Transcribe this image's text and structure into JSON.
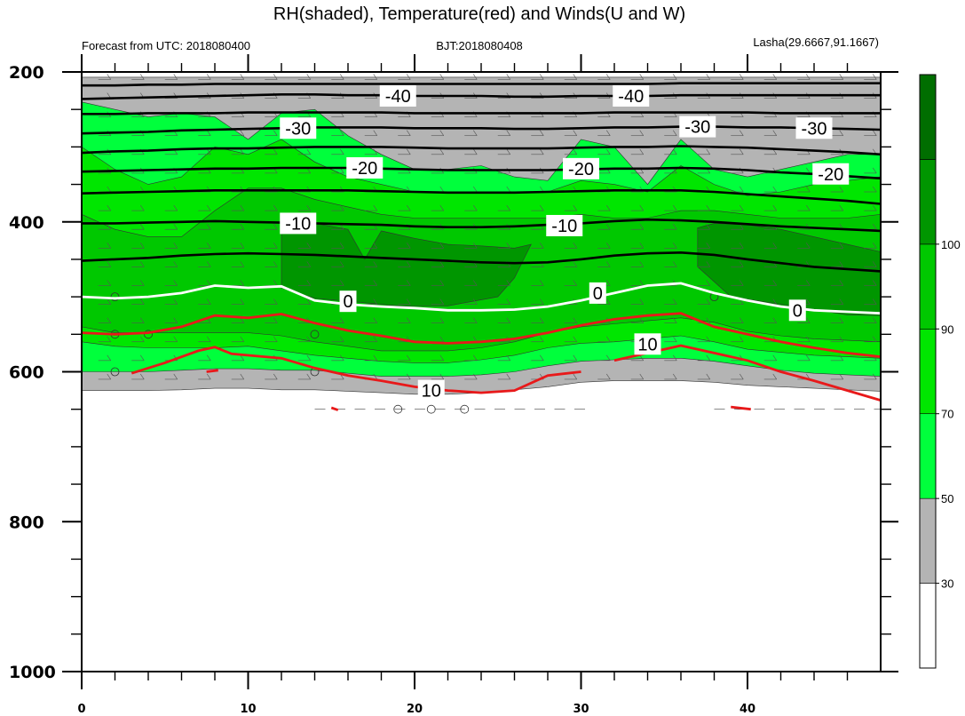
{
  "title": "RH(shaded), Temperature(red) and Winds(U and W)",
  "forecast_label": "Forecast from UTC: 2018080400",
  "bjt_label": "BJT:2018080408",
  "location_label": "Lasha(29.6667,91.1667)",
  "chart_data": {
    "type": "heatmap",
    "title": "RH(shaded), Temperature(red) and Winds(U and W)",
    "x_ticks": [
      "0",
      "10",
      "20",
      "30",
      "40"
    ],
    "y_ticks": [
      "200",
      "400",
      "600",
      "800",
      "1000"
    ],
    "xlim": [
      0,
      48
    ],
    "ylim": [
      1000,
      200
    ],
    "grid": false,
    "x": [
      0,
      2,
      4,
      6,
      8,
      10,
      12,
      14,
      16,
      18,
      20,
      22,
      24,
      26,
      28,
      30,
      32,
      34,
      36,
      38,
      40,
      42,
      44,
      46,
      48
    ],
    "colorbar": {
      "ticks": [
        "30",
        "50",
        "70",
        "90",
        "100"
      ],
      "colors": [
        "#ffffff",
        "#b4b4b4",
        "#00ff3c",
        "#00e600",
        "#00c800",
        "#009600",
        "#006e00"
      ]
    },
    "rh_bands": [
      {
        "color": "#b4b4b4",
        "top": [
          207,
          207,
          207,
          207,
          207,
          207,
          207,
          207,
          207,
          207,
          207,
          207,
          207,
          207,
          207,
          207,
          207,
          207,
          207,
          207,
          207,
          207,
          207,
          207,
          207
        ],
        "bottom": [
          625,
          625,
          625,
          624,
          622,
          622,
          624,
          624,
          626,
          628,
          630,
          630,
          628,
          624,
          620,
          614,
          612,
          612,
          612,
          614,
          618,
          620,
          622,
          624,
          626
        ]
      },
      {
        "color": "#00ff3c",
        "top": [
          240,
          250,
          260,
          255,
          260,
          290,
          255,
          250,
          285,
          310,
          330,
          330,
          325,
          340,
          345,
          290,
          300,
          350,
          290,
          330,
          340,
          330,
          320,
          310,
          310
        ],
        "bottom": [
          600,
          600,
          600,
          598,
          596,
          596,
          598,
          598,
          602,
          606,
          606,
          606,
          604,
          600,
          592,
          586,
          584,
          582,
          582,
          586,
          592,
          598,
          602,
          604,
          606
        ]
      },
      {
        "color": "#00e600",
        "top": [
          300,
          330,
          350,
          340,
          300,
          310,
          290,
          320,
          340,
          350,
          360,
          360,
          360,
          360,
          360,
          345,
          350,
          360,
          325,
          350,
          365,
          360,
          350,
          345,
          340
        ],
        "bottom": [
          560,
          566,
          568,
          568,
          568,
          566,
          572,
          578,
          582,
          586,
          588,
          588,
          584,
          578,
          568,
          562,
          560,
          556,
          552,
          560,
          570,
          574,
          578,
          580,
          582
        ]
      },
      {
        "color": "#00c800",
        "top": [
          390,
          410,
          420,
          420,
          385,
          355,
          355,
          370,
          380,
          390,
          395,
          395,
          395,
          395,
          395,
          390,
          395,
          395,
          385,
          385,
          390,
          395,
          395,
          395,
          390
        ],
        "bottom": [
          540,
          548,
          548,
          548,
          548,
          548,
          552,
          560,
          566,
          572,
          572,
          572,
          568,
          560,
          548,
          540,
          536,
          532,
          528,
          534,
          546,
          552,
          556,
          558,
          560
        ]
      },
      {
        "color": "#009600",
        "top": null,
        "bottom": null
      }
    ],
    "dark_green_regions": [
      [
        [
          12,
          408
        ],
        [
          14,
          402
        ],
        [
          16,
          410
        ],
        [
          17,
          450
        ],
        [
          18,
          412
        ],
        [
          20,
          422
        ],
        [
          22,
          430
        ],
        [
          24,
          432
        ],
        [
          26,
          435
        ],
        [
          27,
          430
        ],
        [
          26,
          475
        ],
        [
          25,
          500
        ],
        [
          22,
          512
        ],
        [
          19,
          512
        ],
        [
          16,
          506
        ],
        [
          14,
          502
        ],
        [
          12,
          488
        ]
      ],
      [
        [
          37,
          408
        ],
        [
          38,
          402
        ],
        [
          40,
          404
        ],
        [
          42,
          410
        ],
        [
          44,
          420
        ],
        [
          46,
          430
        ],
        [
          48,
          440
        ],
        [
          48,
          525
        ],
        [
          46,
          524
        ],
        [
          42,
          510
        ],
        [
          39,
          500
        ],
        [
          37,
          460
        ]
      ]
    ],
    "temperature_black_lines": [
      {
        "label": "-40",
        "values": [
          218,
          218,
          217,
          217,
          216,
          216,
          216,
          216,
          216,
          216,
          216,
          216,
          216,
          216,
          216,
          216,
          216,
          216,
          215,
          215,
          215,
          215,
          215,
          215,
          215
        ]
      },
      {
        "label": "-40",
        "values": [
          236,
          235,
          234,
          233,
          232,
          231,
          230,
          230,
          231,
          231,
          232,
          232,
          232,
          233,
          233,
          232,
          232,
          232,
          231,
          231,
          231,
          231,
          231,
          231,
          231
        ]
      },
      {
        "label": "-30",
        "values": [
          256,
          256,
          255,
          255,
          255,
          254,
          254,
          254,
          254,
          254,
          255,
          255,
          255,
          255,
          255,
          255,
          254,
          254,
          254,
          254,
          254,
          255,
          255,
          255,
          255
        ]
      },
      {
        "label": "-30",
        "values": [
          282,
          281,
          280,
          278,
          277,
          276,
          275,
          274,
          274,
          274,
          275,
          275,
          275,
          276,
          276,
          275,
          274,
          274,
          273,
          273,
          274,
          274,
          275,
          276,
          277
        ]
      },
      {
        "label": "-30",
        "values": [
          308,
          306,
          305,
          303,
          302,
          302,
          301,
          300,
          300,
          300,
          301,
          302,
          302,
          302,
          302,
          301,
          300,
          300,
          299,
          300,
          301,
          303,
          305,
          307,
          310
        ]
      },
      {
        "label": "-20",
        "values": [
          333,
          332,
          331,
          330,
          329,
          329,
          328,
          328,
          328,
          329,
          330,
          331,
          331,
          331,
          331,
          330,
          329,
          329,
          328,
          329,
          331,
          334,
          336,
          339,
          342
        ]
      },
      {
        "label": "-20",
        "values": [
          362,
          361,
          360,
          359,
          358,
          358,
          358,
          358,
          358,
          359,
          360,
          361,
          361,
          361,
          360,
          359,
          358,
          358,
          358,
          360,
          363,
          366,
          369,
          372,
          376
        ]
      },
      {
        "label": "-10",
        "values": [
          402,
          402,
          401,
          400,
          399,
          400,
          401,
          402,
          403,
          404,
          406,
          407,
          407,
          406,
          404,
          402,
          399,
          397,
          398,
          400,
          403,
          406,
          408,
          410,
          412
        ]
      },
      {
        "label": "-10",
        "values": [
          452,
          450,
          448,
          445,
          443,
          442,
          443,
          444,
          446,
          448,
          450,
          452,
          454,
          455,
          454,
          450,
          445,
          442,
          441,
          444,
          450,
          455,
          460,
          463,
          466
        ]
      }
    ],
    "temperature_zero_line": {
      "label": "0",
      "values": [
        500,
        502,
        500,
        495,
        485,
        488,
        486,
        505,
        510,
        513,
        515,
        518,
        518,
        517,
        513,
        505,
        495,
        485,
        482,
        495,
        505,
        513,
        518,
        520,
        522
      ]
    },
    "temperature_red_lines": [
      {
        "label": "10",
        "values": [
          548,
          550,
          548,
          540,
          525,
          528,
          523,
          535,
          545,
          552,
          560,
          562,
          560,
          556,
          548,
          538,
          530,
          525,
          522,
          540,
          550,
          560,
          568,
          575,
          580
        ]
      },
      {
        "label": "10",
        "x": [
          3,
          5,
          7,
          8,
          9,
          11,
          12,
          14,
          16,
          18,
          20,
          22,
          24,
          26,
          28,
          30
        ],
        "values": [
          602,
          588,
          572,
          567,
          576,
          580,
          582,
          595,
          605,
          612,
          620,
          625,
          628,
          625,
          605,
          600
        ]
      },
      {
        "label": "10",
        "x": [
          32,
          34,
          36,
          38,
          40,
          42,
          44,
          46,
          48
        ],
        "values": [
          585,
          575,
          565,
          575,
          585,
          600,
          612,
          625,
          638
        ]
      }
    ],
    "contour_labels": [
      {
        "text": "-40",
        "x": 19,
        "y": 232
      },
      {
        "text": "-40",
        "x": 33,
        "y": 232
      },
      {
        "text": "-30",
        "x": 13,
        "y": 275
      },
      {
        "text": "-30",
        "x": 37,
        "y": 273
      },
      {
        "text": "-30",
        "x": 44,
        "y": 275
      },
      {
        "text": "-20",
        "x": 17,
        "y": 328
      },
      {
        "text": "-20",
        "x": 30,
        "y": 329
      },
      {
        "text": "-20",
        "x": 45,
        "y": 336
      },
      {
        "text": "-10",
        "x": 13,
        "y": 402
      },
      {
        "text": "-10",
        "x": 29,
        "y": 405
      },
      {
        "text": "0",
        "x": 16,
        "y": 506
      },
      {
        "text": "0",
        "x": 31,
        "y": 495
      },
      {
        "text": "0",
        "x": 43,
        "y": 518
      },
      {
        "text": "10",
        "x": 34,
        "y": 563
      },
      {
        "text": "10",
        "x": 21,
        "y": 625
      }
    ]
  }
}
